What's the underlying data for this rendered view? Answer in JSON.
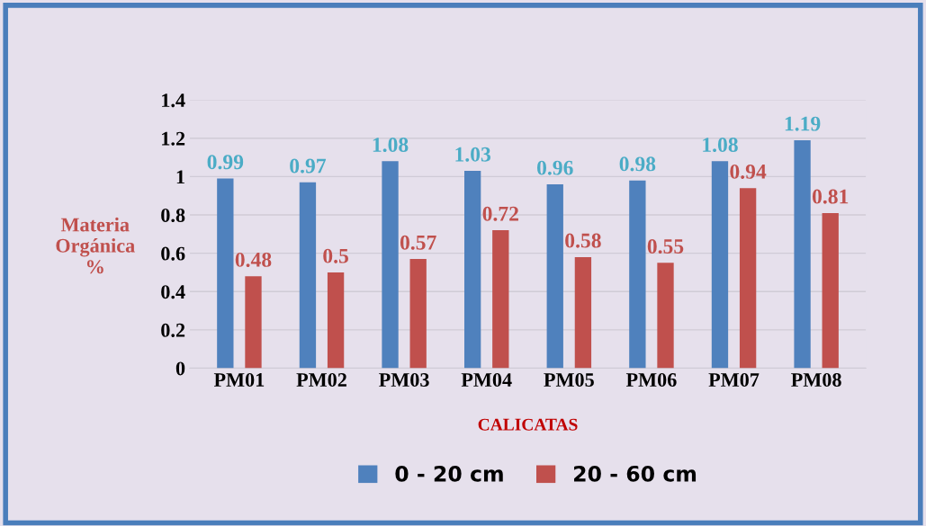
{
  "chart_data": {
    "type": "bar",
    "xlabel": "CALICATAS",
    "ylabel": "Materia\nOrgánica\n%",
    "categories": [
      "PM01",
      "PM02",
      "PM03",
      "PM04",
      "PM05",
      "PM06",
      "PM07",
      "PM08"
    ],
    "series": [
      {
        "name": "0 - 20 cm",
        "color": "#4f81bd",
        "values": [
          0.99,
          0.97,
          1.08,
          1.03,
          0.96,
          0.98,
          1.08,
          1.19
        ]
      },
      {
        "name": "20 - 60 cm",
        "color": "#c0504d",
        "values": [
          0.48,
          0.5,
          0.57,
          0.72,
          0.58,
          0.55,
          0.94,
          0.81
        ]
      }
    ],
    "ylim": [
      0,
      1.4
    ],
    "yticks": [
      0,
      0.2,
      0.4,
      0.6,
      0.8,
      1,
      1.2,
      1.4
    ],
    "grid": "y",
    "legend": "bottom",
    "data_labels": true
  }
}
